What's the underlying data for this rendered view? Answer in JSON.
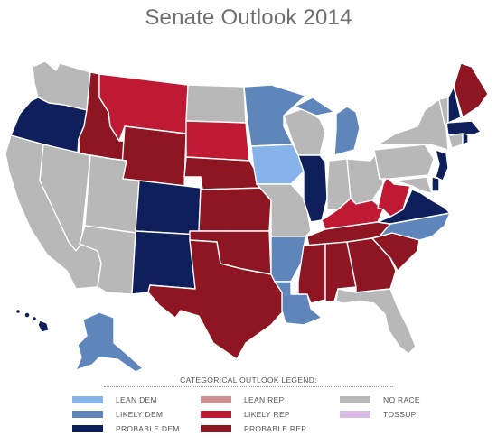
{
  "title": "Senate Outlook 2014",
  "colors": {
    "lean_dem": "#86b3ea",
    "likely_dem": "#5f86bb",
    "probable_dem": "#0e1f5b",
    "lean_rep": "#cf8f92",
    "likely_rep": "#c01934",
    "probable_rep": "#8e1522",
    "no_race": "#b8b8b8",
    "tossup": "#d9b9e6"
  },
  "legend": {
    "title": "CATEGORICAL OUTLOOK LEGEND:",
    "items": [
      {
        "label": "LEAN DEM",
        "category": "lean_dem"
      },
      {
        "label": "LEAN REP",
        "category": "lean_rep"
      },
      {
        "label": "NO RACE",
        "category": "no_race"
      },
      {
        "label": "LIKELY DEM",
        "category": "likely_dem"
      },
      {
        "label": "LIKELY REP",
        "category": "likely_rep"
      },
      {
        "label": "TOSSUP",
        "category": "tossup"
      },
      {
        "label": "PROBABLE DEM",
        "category": "probable_dem"
      },
      {
        "label": "PROBABLE REP",
        "category": "probable_rep"
      }
    ]
  },
  "states": {
    "WA": "no_race",
    "OR": "probable_dem",
    "CA": "no_race",
    "NV": "no_race",
    "ID": "probable_rep",
    "MT": "likely_rep",
    "WY": "probable_rep",
    "UT": "no_race",
    "AZ": "no_race",
    "CO": "probable_dem",
    "NM": "probable_dem",
    "ND": "no_race",
    "SD": "likely_rep",
    "NE": "probable_rep",
    "KS": "probable_rep",
    "OK": "probable_rep",
    "TX": "probable_rep",
    "MN": "likely_dem",
    "IA": "lean_dem",
    "MO": "no_race",
    "AR": "likely_dem",
    "LA": "likely_dem",
    "WI": "no_race",
    "IL": "probable_dem",
    "MI": "likely_dem",
    "IN": "no_race",
    "OH": "no_race",
    "KY": "likely_rep",
    "TN": "probable_rep",
    "MS": "probable_rep",
    "AL": "probable_rep",
    "GA": "probable_rep",
    "FL": "no_race",
    "SC": "probable_rep",
    "NC": "likely_dem",
    "VA": "probable_dem",
    "WV": "likely_rep",
    "MD": "no_race",
    "DE": "probable_dem",
    "PA": "no_race",
    "NJ": "probable_dem",
    "NY": "no_race",
    "CT": "no_race",
    "RI": "probable_dem",
    "MA": "probable_dem",
    "VT": "no_race",
    "NH": "probable_dem",
    "ME": "probable_rep",
    "AK": "likely_dem",
    "HI": "probable_dem"
  }
}
